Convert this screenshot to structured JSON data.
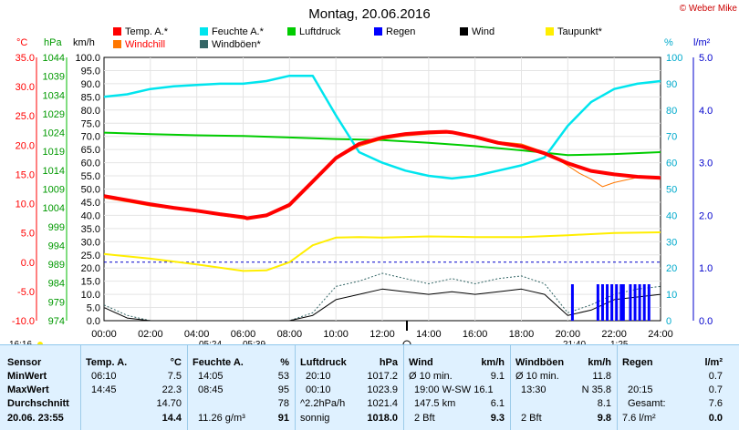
{
  "title": "Montag, 20.06.2016",
  "copyright": "© Weber Mike",
  "legend": [
    {
      "label": "Temp. A.*",
      "color": "#ff0000"
    },
    {
      "label": "Feuchte A.*",
      "color": "#00e5ee"
    },
    {
      "label": "Luftdruck",
      "color": "#00cc00"
    },
    {
      "label": "Regen",
      "color": "#0000ff"
    },
    {
      "label": "Wind",
      "color": "#000000"
    },
    {
      "label": "Taupunkt*",
      "color": "#ffee00"
    },
    {
      "label": "Windchill",
      "color": "#ff7700"
    },
    {
      "label": "Windböen*",
      "color": "#336666"
    }
  ],
  "axes_units": {
    "temp": "°C",
    "pressure": "hPa",
    "wind": "km/h",
    "humidity": "%",
    "rain": "l/m²"
  },
  "time_labels": {
    "left": "16:16",
    "sunrise_left": "05:24",
    "sunrise_right": "05:39",
    "sunset_left": "21:40",
    "sunset_right": "1:25"
  },
  "chart_data": {
    "type": "line",
    "x_ticks": [
      "00:00",
      "02:00",
      "04:00",
      "06:00",
      "08:00",
      "10:00",
      "12:00",
      "14:00",
      "16:00",
      "18:00",
      "20:00",
      "22:00",
      "24:00"
    ],
    "temp_ticks": [
      "35.0",
      "30.0",
      "25.0",
      "20.0",
      "15.0",
      "10.0",
      "5.0",
      "0.0",
      "-5.0",
      "-10.0"
    ],
    "pressure_ticks": [
      "1044",
      "1039",
      "1034",
      "1029",
      "1024",
      "1019",
      "1014",
      "1009",
      "1004",
      "999",
      "994",
      "989",
      "984",
      "979",
      "974"
    ],
    "wind_ticks": [
      "100.0",
      "95.0",
      "90.0",
      "85.0",
      "80.0",
      "75.0",
      "70.0",
      "65.0",
      "60.0",
      "55.0",
      "50.0",
      "45.0",
      "40.0",
      "35.0",
      "30.0",
      "25.0",
      "20.0",
      "15.0",
      "10.0",
      "5.0",
      "0.0"
    ],
    "humidity_ticks": [
      "100",
      "90",
      "80",
      "70",
      "60",
      "50",
      "40",
      "30",
      "20",
      "10",
      "0"
    ],
    "rain_ticks": [
      "5.0",
      "4.0",
      "3.0",
      "2.0",
      "1.0",
      "0.0"
    ],
    "temp_range": [
      -10,
      35
    ],
    "x_range_hours": [
      0,
      24
    ],
    "series": [
      {
        "name": "Temp. A.*",
        "color": "#ff0000",
        "width": 4,
        "x": [
          0,
          1,
          2,
          3,
          4,
          5,
          6,
          6.17,
          7,
          8,
          9,
          10,
          11,
          12,
          13,
          14,
          14.75,
          15,
          16,
          17,
          18,
          19,
          20,
          21,
          22,
          23,
          24
        ],
        "y": [
          11.3,
          10.6,
          9.9,
          9.3,
          8.8,
          8.2,
          7.7,
          7.5,
          8.0,
          9.8,
          13.8,
          17.8,
          20.2,
          21.3,
          21.9,
          22.2,
          22.3,
          22.2,
          21.4,
          20.4,
          19.8,
          18.6,
          16.9,
          15.6,
          15.0,
          14.6,
          14.4
        ]
      },
      {
        "name": "Windchill",
        "color": "#ff7700",
        "width": 1,
        "x": [
          0,
          2,
          4,
          6,
          7,
          8,
          9,
          10,
          11,
          12,
          13,
          14,
          15,
          16,
          17,
          18,
          19,
          20,
          20.5,
          21,
          21.5,
          22,
          23,
          24
        ],
        "y": [
          11.0,
          9.6,
          8.6,
          7.4,
          7.8,
          9.5,
          13.5,
          17.6,
          19.8,
          21.0,
          21.6,
          21.9,
          22.1,
          21.5,
          20.6,
          20.2,
          18.8,
          16.5,
          15.2,
          14.2,
          12.9,
          13.6,
          14.5,
          14.3
        ]
      },
      {
        "name": "Feuchte A.*",
        "color": "#00e5ee",
        "width": 2.5,
        "x": [
          0,
          1,
          2,
          3,
          4,
          5,
          6,
          7,
          8,
          9,
          10,
          11,
          12,
          13,
          14,
          15,
          16,
          17,
          18,
          19,
          20,
          21,
          22,
          23,
          24
        ],
        "y": [
          85,
          86,
          88,
          89,
          89.5,
          90,
          90,
          91,
          93,
          93,
          78,
          64,
          60,
          57,
          55,
          54,
          55,
          57,
          59,
          62,
          74,
          83,
          88,
          90,
          91
        ]
      },
      {
        "name": "Luftdruck",
        "color": "#00cc00",
        "width": 2,
        "x": [
          0,
          2,
          4,
          6,
          8,
          10,
          12,
          14,
          16,
          18,
          20,
          22,
          24
        ],
        "y": [
          1024.0,
          1023.6,
          1023.3,
          1023.1,
          1022.7,
          1022.3,
          1022.0,
          1021.3,
          1020.4,
          1019.3,
          1018.0,
          1018.3,
          1018.8
        ]
      },
      {
        "name": "Taupunkt*",
        "color": "#ffee00",
        "width": 2,
        "x": [
          0,
          2,
          4,
          6,
          7,
          8,
          9,
          10,
          11,
          12,
          14,
          16,
          18,
          20,
          22,
          24
        ],
        "y": [
          1.4,
          0.6,
          -0.4,
          -1.5,
          -1.4,
          0.0,
          2.9,
          4.2,
          4.3,
          4.2,
          4.4,
          4.3,
          4.3,
          4.6,
          5.0,
          5.1
        ]
      },
      {
        "name": "Wind",
        "color": "#000000",
        "width": 1,
        "x": [
          0,
          1,
          2,
          3,
          4,
          5,
          6,
          7,
          8,
          9,
          10,
          11,
          12,
          13,
          14,
          15,
          16,
          17,
          18,
          19,
          20,
          21,
          22,
          23,
          24
        ],
        "y": [
          5,
          1,
          0,
          0,
          0,
          0,
          0,
          0,
          0,
          2,
          8,
          10,
          12,
          11,
          10,
          11,
          10,
          11,
          12,
          10,
          2,
          4,
          8,
          9,
          10
        ]
      },
      {
        "name": "Windböen*",
        "color": "#336666",
        "width": 1,
        "x": [
          0,
          1,
          2,
          3,
          4,
          5,
          6,
          7,
          8,
          9,
          10,
          11,
          12,
          13,
          14,
          15,
          16,
          17,
          18,
          19,
          20,
          21,
          22,
          23,
          24
        ],
        "y": [
          6,
          2,
          0,
          0,
          0,
          0,
          0,
          0,
          0,
          3,
          13,
          15,
          18,
          16,
          14,
          16,
          14,
          16,
          17,
          14,
          3,
          6,
          10,
          12,
          13
        ]
      }
    ],
    "rain_bars_hours": [
      20.2,
      21.3,
      21.5,
      21.7,
      21.9,
      22.1,
      22.3,
      22.4,
      22.7,
      22.9,
      23.1,
      23.3,
      23.5
    ]
  },
  "stats": {
    "sensor": {
      "header": "Sensor",
      "rows": [
        "MinWert",
        "MaxWert",
        "Durchschnitt",
        "20.06.  23:55"
      ]
    },
    "temp": {
      "header": "Temp. A.",
      "unit": "°C",
      "rows": [
        [
          "06:10",
          "7.5"
        ],
        [
          "14:45",
          "22.3"
        ],
        [
          "",
          "14.70"
        ],
        [
          "",
          "14.4"
        ]
      ]
    },
    "humidity": {
      "header": "Feuchte A.",
      "unit": "%",
      "rows": [
        [
          "14:05",
          "53"
        ],
        [
          "08:45",
          "95"
        ],
        [
          "",
          "78"
        ],
        [
          "11.26 g/m³",
          "91"
        ]
      ]
    },
    "pressure": {
      "header": "Luftdruck",
      "unit": "hPa",
      "rows": [
        [
          "20:10",
          "1017.2"
        ],
        [
          "00:10",
          "1023.9"
        ],
        [
          "^2.2hPa/h",
          "1021.4"
        ],
        [
          "sonnig",
          "1018.0"
        ]
      ]
    },
    "wind": {
      "header": "Wind",
      "unit": "km/h",
      "rows": [
        [
          "Ø 10 min.",
          "9.1"
        ],
        [
          "19:00   W-SW 16.1",
          ""
        ],
        [
          "147.5 km",
          "6.1"
        ],
        [
          "2 Bft",
          "9.3"
        ]
      ]
    },
    "gust": {
      "header": "Windböen",
      "unit": "km/h",
      "rows": [
        [
          "Ø 10 min.",
          "11.8"
        ],
        [
          "13:30",
          "N 35.8"
        ],
        [
          "",
          "8.1"
        ],
        [
          "2 Bft",
          "9.8"
        ]
      ]
    },
    "rain": {
      "header": "Regen",
      "unit": "l/m²",
      "rows": [
        [
          "",
          "0.7"
        ],
        [
          "20:15",
          "0.7"
        ],
        [
          "Gesamt:",
          "7.6"
        ],
        [
          "7.6 l/m²",
          "0.0"
        ]
      ]
    }
  }
}
